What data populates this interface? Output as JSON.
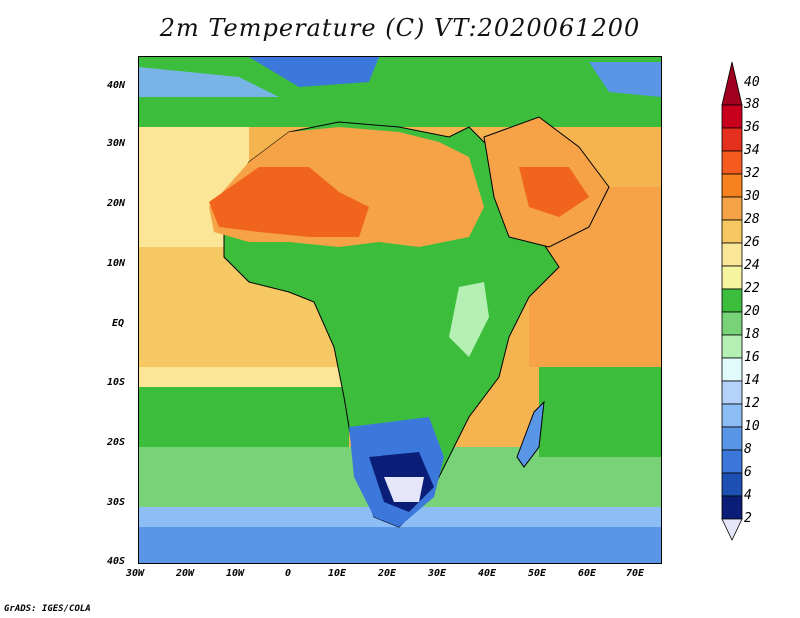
{
  "title": "2m Temperature (C) VT:2020061200",
  "credit": "GrADS: IGES/COLA",
  "lat_ticks": [
    "40N",
    "30N",
    "20N",
    "10N",
    "EQ",
    "10S",
    "20S",
    "30S",
    "40S"
  ],
  "lon_ticks": [
    "30W",
    "20W",
    "10W",
    "0",
    "10E",
    "20E",
    "30E",
    "40E",
    "50E",
    "60E",
    "70E"
  ],
  "colorbar": {
    "levels": [
      "40",
      "38",
      "36",
      "34",
      "32",
      "30",
      "28",
      "26",
      "24",
      "22",
      "20",
      "18",
      "16",
      "14",
      "12",
      "10",
      "8",
      "6",
      "4",
      "2"
    ],
    "colors": [
      "#a0001e",
      "#c8001e",
      "#e6301e",
      "#f55a1e",
      "#f5821e",
      "#f5a346",
      "#f5c864",
      "#fae696",
      "#f5f5a0",
      "#3cbe3c",
      "#78d278",
      "#b4f0b4",
      "#e1fafa",
      "#b4d2fa",
      "#8cbef5",
      "#5a96e6",
      "#3c78dc",
      "#1e50b4",
      "#0a1e78",
      "#e6e6fa"
    ]
  },
  "map": {
    "region": "Africa, 40S-45N, 30W-75E",
    "field": "2m temperature",
    "ocean_warm_color": "#f5b450",
    "land_hot_color": "#f0641e",
    "cold_color": "#283c96"
  }
}
